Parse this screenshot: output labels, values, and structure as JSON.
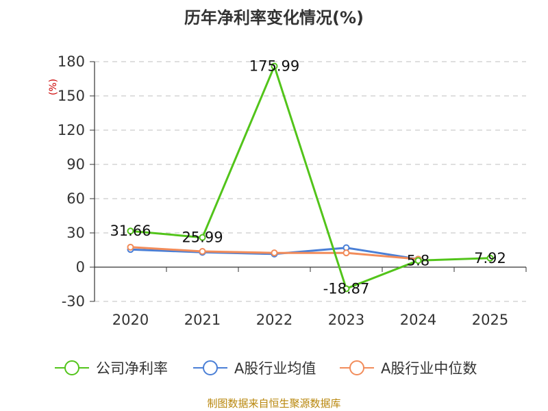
{
  "chart_data": {
    "type": "line",
    "title": "历年净利率变化情况(%)",
    "ylabel": "(%)",
    "xlabel": "",
    "categories": [
      "2020",
      "2021",
      "2022",
      "2023",
      "2024",
      "2025"
    ],
    "y_ticks": [
      "180",
      "150",
      "120",
      "90",
      "60",
      "30",
      "0",
      "-30"
    ],
    "ylim": [
      -30,
      180
    ],
    "grid": true,
    "legend_position": "bottom",
    "series": [
      {
        "name": "公司净利率",
        "color": "#52c41a",
        "values": [
          31.66,
          25.99,
          175.99,
          -18.87,
          5.8,
          7.92
        ],
        "labels": [
          "31.66",
          "25.99",
          "175.99",
          "-18.87",
          "5.8",
          "7.92"
        ]
      },
      {
        "name": "A股行业均值",
        "color": "#4a7fd6",
        "values": [
          15.5,
          13.0,
          11.5,
          17.0,
          7.0,
          null
        ]
      },
      {
        "name": "A股行业中位数",
        "color": "#f28c5a",
        "values": [
          17.5,
          13.8,
          12.5,
          12.5,
          7.0,
          null
        ]
      }
    ]
  },
  "source": "制图数据来自恒生聚源数据库"
}
